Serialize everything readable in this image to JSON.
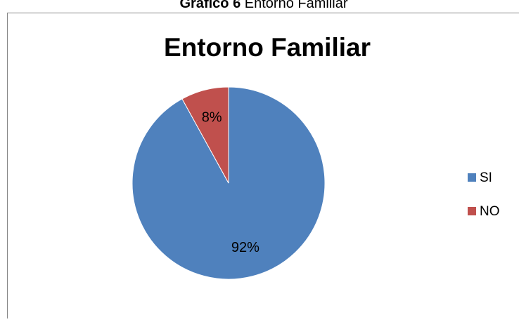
{
  "caption": {
    "label": "Gráfico 6",
    "text": "Entorno Familiar"
  },
  "chart_data": {
    "type": "pie",
    "title": "Entorno Familiar",
    "categories": [
      "SI",
      "NO"
    ],
    "values": [
      92,
      8
    ],
    "value_labels": [
      "92%",
      "8%"
    ],
    "colors": [
      "#4f81bd",
      "#c0504d"
    ],
    "legend": "right"
  }
}
